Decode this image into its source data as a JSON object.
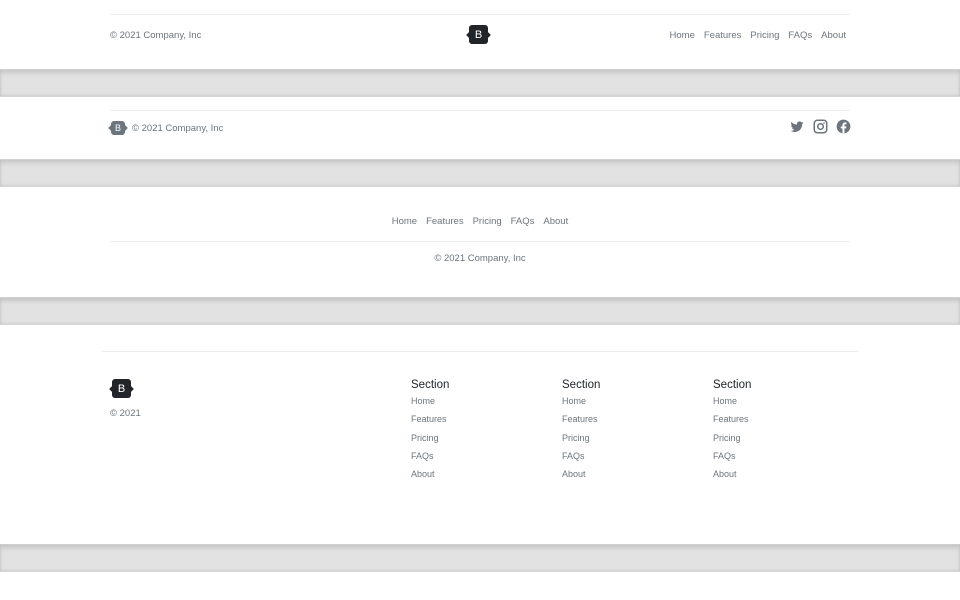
{
  "copyright": "© 2021 Company, Inc",
  "copyright_short": "© 2021",
  "logo_letter": "B",
  "nav": [
    "Home",
    "Features",
    "Pricing",
    "FAQs",
    "About"
  ],
  "social": [
    "twitter-icon",
    "instagram-icon",
    "facebook-icon"
  ],
  "sections": [
    {
      "title": "Section",
      "links": [
        "Home",
        "Features",
        "Pricing",
        "FAQs",
        "About"
      ]
    },
    {
      "title": "Section",
      "links": [
        "Home",
        "Features",
        "Pricing",
        "FAQs",
        "About"
      ]
    },
    {
      "title": "Section",
      "links": [
        "Home",
        "Features",
        "Pricing",
        "FAQs",
        "About"
      ]
    }
  ],
  "colors": {
    "logo_dark": "#212529",
    "logo_muted": "#6c757d",
    "text_muted": "#6c757d",
    "divider": "#e2e2e2"
  }
}
